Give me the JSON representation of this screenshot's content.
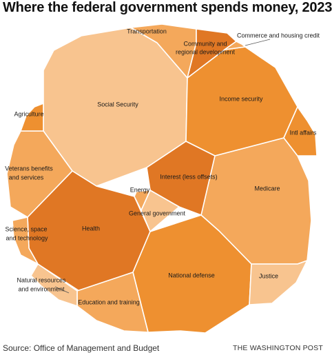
{
  "title": "Where the federal government spends money, 2023",
  "source": "Source: Office of Management and Budget",
  "brand": "THE WASHINGTON POST",
  "colors": {
    "light": "#f8c48f",
    "medium": "#f4a85b",
    "dark": "#ee9030",
    "darkest": "#e07724"
  },
  "chart_data": {
    "type": "voronoi-treemap",
    "year": 2023,
    "categories": [
      "Social Security",
      "Health",
      "Medicare",
      "Income security",
      "National defense",
      "Interest (less offsets)",
      "Education and training",
      "Veterans benefits and services",
      "Transportation",
      "Community and regional development",
      "Commerce and housing credit",
      "Intl affairs",
      "Agriculture",
      "Science, space and technology",
      "Natural resources and environment",
      "Justice",
      "General government",
      "Energy"
    ]
  }
}
